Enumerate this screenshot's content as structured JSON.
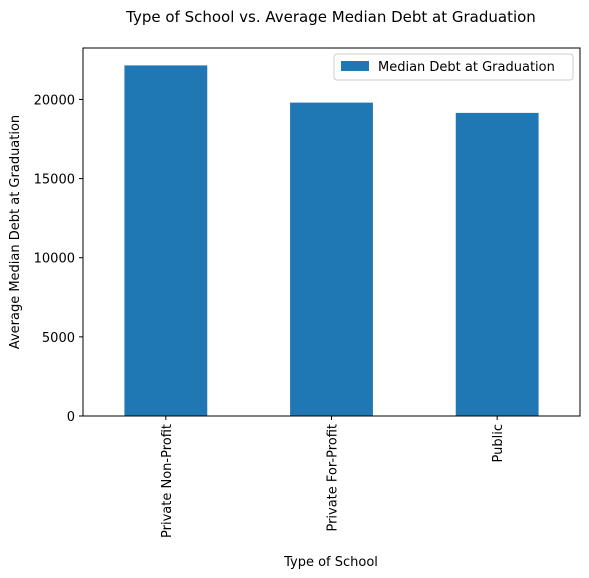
{
  "chart_data": {
    "type": "bar",
    "title": "Type of School vs. Average  Median Debt at Graduation",
    "xlabel": "Type of School",
    "ylabel": "Average Median Debt at Graduation",
    "categories": [
      "Private Non-Profit",
      "Private For-Profit",
      "Public"
    ],
    "series": [
      {
        "name": "Median Debt at Graduation",
        "values": [
          22150,
          19800,
          19150
        ],
        "color": "#1f77b4"
      }
    ],
    "ylim": [
      0,
      23250
    ],
    "yticks": [
      0,
      5000,
      10000,
      15000,
      20000
    ],
    "grid": false,
    "legend_position": "top-right"
  }
}
